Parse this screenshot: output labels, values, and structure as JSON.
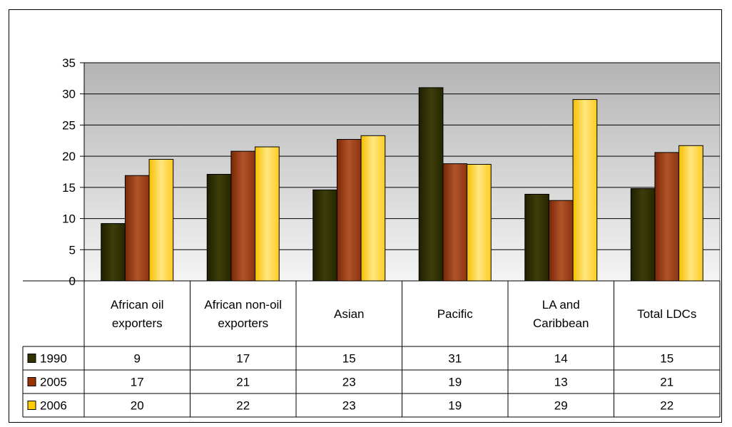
{
  "chart_data": {
    "type": "bar",
    "title": "",
    "xlabel": "",
    "ylabel": "",
    "ylim": [
      0,
      35
    ],
    "yticks": [
      0,
      5,
      10,
      15,
      20,
      25,
      30,
      35
    ],
    "grid": true,
    "legend": "data-table",
    "categories": [
      [
        "African oil",
        "exporters"
      ],
      [
        "African non-oil",
        "exporters"
      ],
      [
        "Asian"
      ],
      [
        "Pacific"
      ],
      [
        "LA and",
        "Caribbean"
      ],
      [
        "Total LDCs"
      ]
    ],
    "series": [
      {
        "name": "1990",
        "color": "#333300",
        "values": [
          9.2,
          17.1,
          14.6,
          31.0,
          13.9,
          14.8
        ]
      },
      {
        "name": "2005",
        "color": "#993300",
        "values": [
          16.9,
          20.8,
          22.7,
          18.8,
          12.9,
          20.6
        ]
      },
      {
        "name": "2006",
        "color": "#ffcc00",
        "values": [
          19.5,
          21.5,
          23.3,
          18.7,
          29.1,
          21.7
        ]
      }
    ],
    "table_values": [
      [
        "9",
        "17",
        "15",
        "31",
        "14",
        "15"
      ],
      [
        "17",
        "21",
        "23",
        "19",
        "13",
        "21"
      ],
      [
        "20",
        "22",
        "23",
        "19",
        "29",
        "22"
      ]
    ]
  }
}
